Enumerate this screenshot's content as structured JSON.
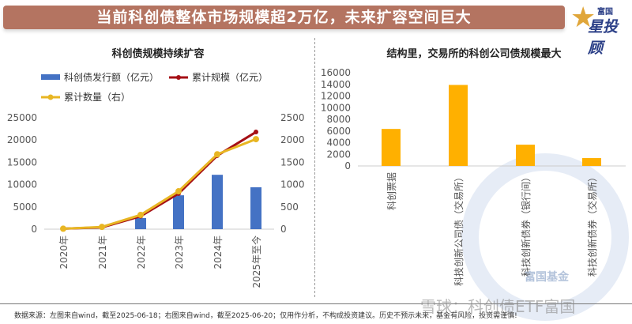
{
  "banner": {
    "title": "当前科创债整体市场规模超2万亿，未来扩容空间巨大"
  },
  "logo": {
    "top": "富国",
    "main": "星投顾"
  },
  "footer": {
    "note": "数据来源：左图来自wind，截至2025-06-18；右图来自wind，截至2025-06-20；仅用作分析，不构成投资建议。历史不预示未来，基金有风险，投资需谨慎!"
  },
  "watermark": {
    "text": "雪球：科创债ETF富国",
    "fund": "富国基金"
  },
  "chart_data": [
    {
      "type": "bar+line",
      "title": "科创债规模持续扩容",
      "categories": [
        "2020年",
        "2021年",
        "2022年",
        "2023年",
        "2024年",
        "2025年至今"
      ],
      "yleft": {
        "ticks": [
          "0",
          "5000",
          "10000",
          "15000",
          "20000",
          "25000"
        ],
        "ylim": [
          0,
          25000
        ]
      },
      "yright": {
        "ticks": [
          "0",
          "500",
          "1000",
          "1500",
          "2000",
          "2500"
        ],
        "ylim": [
          0,
          2500
        ]
      },
      "legend_position": "top",
      "series": [
        {
          "name": "科创债发行额（亿元）",
          "kind": "bar",
          "axis": "left",
          "color": "#4472c4",
          "values": [
            0,
            0,
            2500,
            7600,
            12200,
            9400
          ]
        },
        {
          "name": "累计规模（亿元）",
          "kind": "line",
          "axis": "left",
          "color": "#a50f15",
          "values": [
            100,
            400,
            2900,
            8000,
            16500,
            21800
          ]
        },
        {
          "name": "累计数量（右）",
          "kind": "line",
          "axis": "right",
          "color": "#e8b623",
          "values": [
            10,
            50,
            320,
            850,
            1680,
            2020
          ]
        }
      ]
    },
    {
      "type": "bar",
      "title": "结构里，交易所的科创公司债规模最大",
      "categories": [
        "科创票据",
        "科技创新公司债（交易所）",
        "科技创新债券（银行间）",
        "科技创新债券（交易所）"
      ],
      "values": [
        6350,
        13900,
        3650,
        1350
      ],
      "color": "#ffb000",
      "yticks": [
        "0",
        "2000",
        "4000",
        "6000",
        "8000",
        "10000",
        "12000",
        "14000",
        "16000"
      ],
      "ylim": [
        0,
        16000
      ]
    }
  ]
}
